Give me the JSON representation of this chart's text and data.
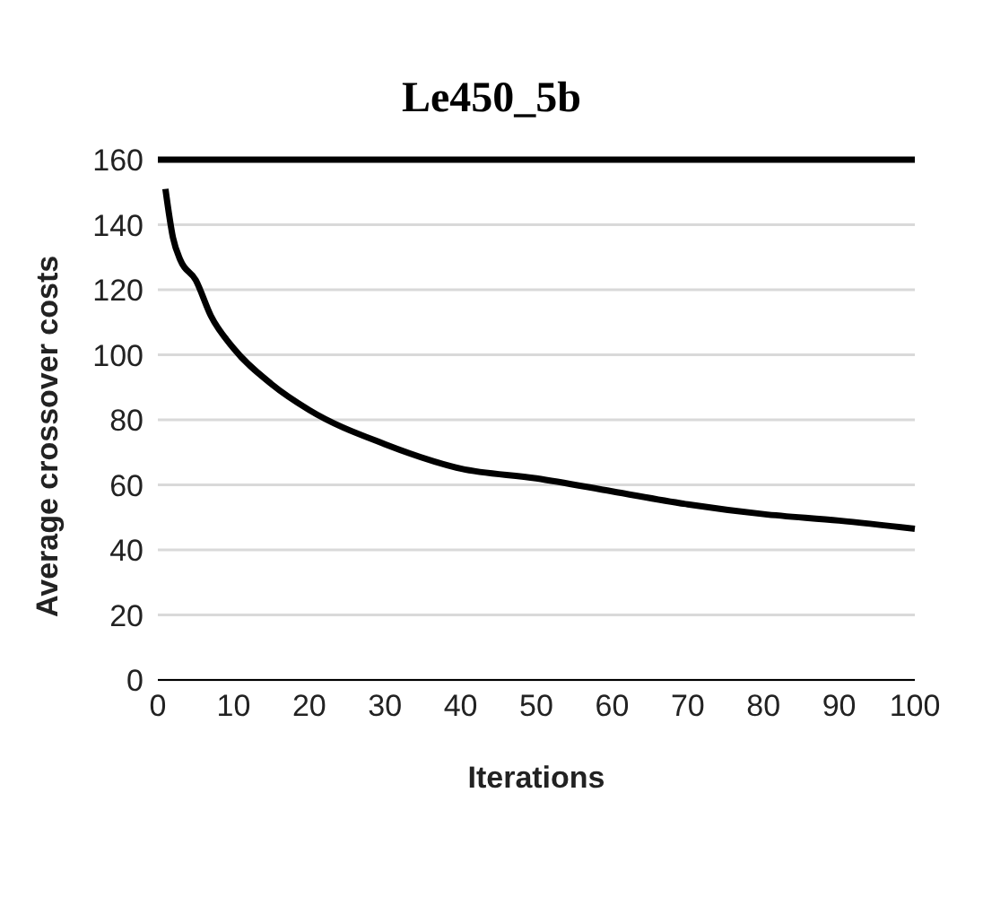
{
  "chart_data": {
    "type": "line",
    "title": "Le450_5b",
    "xlabel": "Iterations",
    "ylabel": "Average crossover costs",
    "xlim": [
      0,
      100
    ],
    "xticks": [
      0,
      10,
      20,
      30,
      40,
      50,
      60,
      70,
      80,
      90,
      100
    ],
    "ylim": [
      0,
      160
    ],
    "yticks": [
      0,
      20,
      40,
      60,
      80,
      100,
      120,
      140,
      160
    ],
    "grid": "y",
    "legend": false,
    "marker": "none",
    "line_style": "solid",
    "series": [
      {
        "color": "#000000",
        "x": [
          1,
          2,
          3,
          5,
          7,
          10,
          15,
          20,
          30,
          40,
          50,
          60,
          70,
          80,
          90,
          100
        ],
        "values": [
          151,
          136,
          129,
          123,
          112,
          102,
          91,
          83,
          72.5,
          65,
          62,
          58,
          54,
          51,
          49,
          46.5
        ]
      },
      {
        "color": "#000000",
        "x": [
          0,
          100
        ],
        "values": [
          160,
          160
        ]
      }
    ]
  }
}
